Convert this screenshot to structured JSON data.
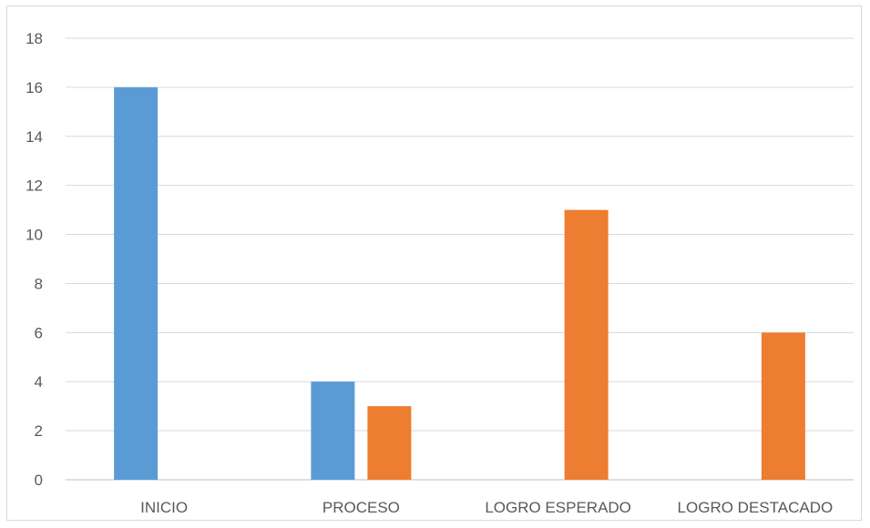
{
  "chart_data": {
    "type": "bar",
    "categories": [
      "INICIO",
      "PROCESO",
      "LOGRO ESPERADO",
      "LOGRO DESTACADO"
    ],
    "series": [
      {
        "values": [
          16,
          4,
          null,
          null
        ],
        "color": "#5b9bd5"
      },
      {
        "values": [
          null,
          3,
          11,
          6
        ],
        "color": "#ed7d31"
      }
    ],
    "ylim": [
      0,
      18
    ],
    "yticks": [
      0,
      2,
      4,
      6,
      8,
      10,
      12,
      14,
      16,
      18
    ],
    "grid": true,
    "title": "",
    "xlabel": "",
    "ylabel": ""
  }
}
